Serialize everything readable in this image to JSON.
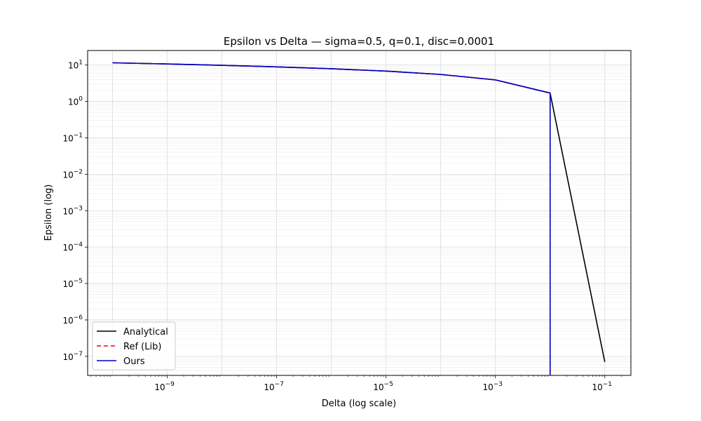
{
  "chart_data": {
    "type": "line",
    "title": "Epsilon vs Delta — sigma=0.5, q=0.1, disc=0.0001",
    "xlabel": "Delta (log scale)",
    "ylabel": "Epsilon (log)",
    "xscale": "log",
    "yscale": "log",
    "xlim": [
      3.5e-11,
      0.3
    ],
    "ylim": [
      3e-08,
      25
    ],
    "grid": true,
    "legend_position": "lower-left",
    "x_ticks": [
      {
        "value": 1e-09,
        "label": "10",
        "exp": "−9"
      },
      {
        "value": 1e-07,
        "label": "10",
        "exp": "−7"
      },
      {
        "value": 1e-05,
        "label": "10",
        "exp": "−5"
      },
      {
        "value": 0.001,
        "label": "10",
        "exp": "−3"
      },
      {
        "value": 0.1,
        "label": "10",
        "exp": "−1"
      }
    ],
    "y_ticks": [
      {
        "value": 10,
        "label": "10",
        "exp": "1"
      },
      {
        "value": 1,
        "label": "10",
        "exp": "0"
      },
      {
        "value": 0.1,
        "label": "10",
        "exp": "−1"
      },
      {
        "value": 0.01,
        "label": "10",
        "exp": "−2"
      },
      {
        "value": 0.001,
        "label": "10",
        "exp": "−3"
      },
      {
        "value": 0.0001,
        "label": "10",
        "exp": "−4"
      },
      {
        "value": 1e-05,
        "label": "10",
        "exp": "−5"
      },
      {
        "value": 1e-06,
        "label": "10",
        "exp": "−6"
      },
      {
        "value": 1e-07,
        "label": "10",
        "exp": "−7"
      }
    ],
    "series": [
      {
        "name": "Analytical",
        "color": "#000000",
        "dash": "",
        "x": [
          1e-10,
          1e-09,
          1e-08,
          1e-07,
          1e-06,
          1e-05,
          0.0001,
          0.001,
          0.01,
          0.1
        ],
        "y": [
          11.5,
          10.7,
          9.8,
          8.9,
          7.9,
          6.8,
          5.5,
          3.9,
          1.7,
          7e-08
        ]
      },
      {
        "name": "Ref (Lib)",
        "color": "#ff0000",
        "dash": "6,4",
        "x": [
          1e-10,
          1e-09,
          1e-08,
          1e-07,
          1e-06,
          1e-05,
          0.0001,
          0.001,
          0.01,
          0.01
        ],
        "y": [
          11.5,
          10.7,
          9.8,
          8.9,
          7.9,
          6.8,
          5.5,
          3.9,
          1.7,
          1e-12
        ]
      },
      {
        "name": "Ours",
        "color": "#0000cc",
        "dash": "",
        "x": [
          1e-10,
          1e-09,
          1e-08,
          1e-07,
          1e-06,
          1e-05,
          0.0001,
          0.001,
          0.01,
          0.01
        ],
        "y": [
          11.5,
          10.7,
          9.8,
          8.9,
          7.9,
          6.8,
          5.5,
          3.9,
          1.7,
          1e-12
        ]
      }
    ]
  }
}
